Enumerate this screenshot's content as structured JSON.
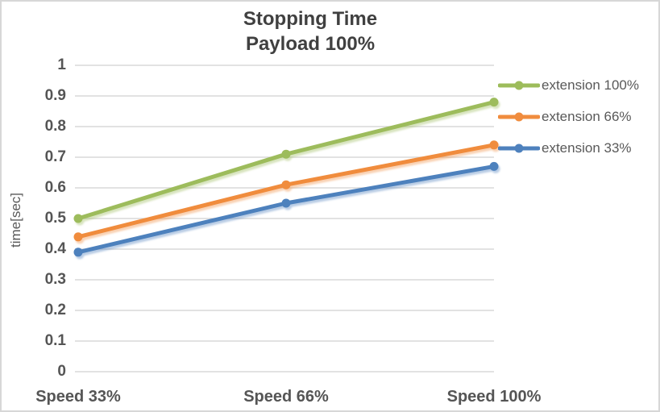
{
  "chart_data": {
    "type": "line",
    "title": "Stopping Time",
    "subtitle": "Payload 100%",
    "ylabel": "time[sec]",
    "xlabel": "",
    "categories": [
      "Speed 33%",
      "Speed 66%",
      "Speed 100%"
    ],
    "series": [
      {
        "name": "extension 100%",
        "color": "#9DBC5B",
        "values": [
          0.5,
          0.71,
          0.88
        ]
      },
      {
        "name": "extension 66%",
        "color": "#F08C3E",
        "values": [
          0.44,
          0.61,
          0.74
        ]
      },
      {
        "name": "extension 33%",
        "color": "#4E81BD",
        "values": [
          0.39,
          0.55,
          0.67
        ]
      }
    ],
    "ylim": [
      0,
      1
    ],
    "ytick_step": 0.1,
    "grid": true,
    "legend_position": "right",
    "marker": "circle"
  },
  "styles": {
    "background": "#FFFFFF",
    "border_color": "#D7D7D7",
    "gridline_color": "#D9D9D9",
    "title_color": "#404040",
    "tick_color": "#555555",
    "legend_text_color": "#595959"
  }
}
